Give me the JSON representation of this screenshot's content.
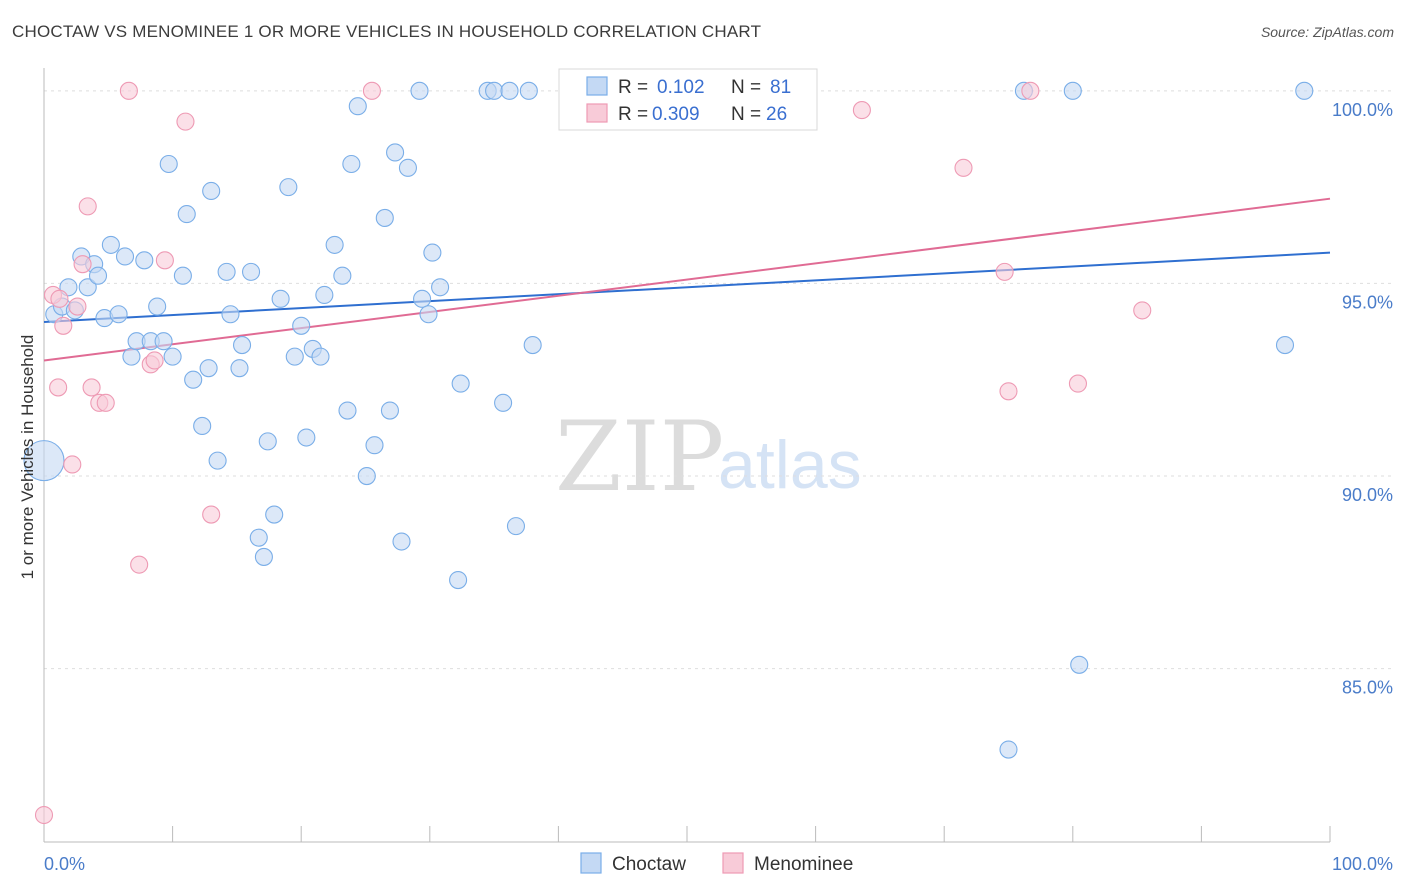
{
  "title": "CHOCTAW VS MENOMINEE 1 OR MORE VEHICLES IN HOUSEHOLD CORRELATION CHART",
  "source": "Source: ZipAtlas.com",
  "watermark": {
    "zip": "ZIP",
    "atlas": "atlas"
  },
  "legend": {
    "rows": [
      {
        "r_label": "R =",
        "r_value": "0.102",
        "n_label": "N =",
        "n_value": "81"
      },
      {
        "r_label": "R =",
        "r_value": "0.309",
        "n_label": "N =",
        "n_value": "26"
      }
    ]
  },
  "chart_data": {
    "type": "scatter",
    "title": "CHOCTAW VS MENOMINEE 1 OR MORE VEHICLES IN HOUSEHOLD CORRELATION CHART",
    "xlabel": "",
    "ylabel": "1 or more Vehicles in Household",
    "xlim": [
      0,
      100
    ],
    "ylim": [
      80.5,
      100.8
    ],
    "x_tick_labels": [
      "0.0%",
      "100.0%"
    ],
    "y_ticks": [
      85,
      90,
      95,
      100
    ],
    "y_tick_labels": [
      "85.0%",
      "90.0%",
      "95.0%",
      "100.0%"
    ],
    "grid": "horizontal dashed",
    "legend_position": "bottom-center",
    "series": [
      {
        "name": "Choctaw",
        "color": "#7aaee8",
        "fill": "#c4d9f4",
        "trend": {
          "x": [
            0,
            100
          ],
          "y": [
            94.0,
            95.8
          ]
        },
        "points": [
          {
            "x": 0.0,
            "y": 90.4,
            "big": true
          },
          {
            "x": 0.8,
            "y": 94.2
          },
          {
            "x": 1.4,
            "y": 94.4
          },
          {
            "x": 1.9,
            "y": 94.9
          },
          {
            "x": 2.4,
            "y": 94.3
          },
          {
            "x": 2.9,
            "y": 95.7
          },
          {
            "x": 3.4,
            "y": 94.9
          },
          {
            "x": 3.9,
            "y": 95.5
          },
          {
            "x": 4.2,
            "y": 95.2
          },
          {
            "x": 4.7,
            "y": 94.1
          },
          {
            "x": 5.2,
            "y": 96.0
          },
          {
            "x": 5.8,
            "y": 94.2
          },
          {
            "x": 6.3,
            "y": 95.7
          },
          {
            "x": 6.8,
            "y": 93.1
          },
          {
            "x": 7.2,
            "y": 93.5
          },
          {
            "x": 7.8,
            "y": 95.6
          },
          {
            "x": 8.3,
            "y": 93.5
          },
          {
            "x": 8.8,
            "y": 94.4
          },
          {
            "x": 9.3,
            "y": 93.5
          },
          {
            "x": 9.7,
            "y": 98.1
          },
          {
            "x": 10.0,
            "y": 93.1
          },
          {
            "x": 10.8,
            "y": 95.2
          },
          {
            "x": 11.1,
            "y": 96.8
          },
          {
            "x": 11.6,
            "y": 92.5
          },
          {
            "x": 12.3,
            "y": 91.3
          },
          {
            "x": 12.8,
            "y": 92.8
          },
          {
            "x": 13.0,
            "y": 97.4
          },
          {
            "x": 13.5,
            "y": 90.4
          },
          {
            "x": 14.2,
            "y": 95.3
          },
          {
            "x": 14.5,
            "y": 94.2
          },
          {
            "x": 15.2,
            "y": 92.8
          },
          {
            "x": 15.4,
            "y": 93.4
          },
          {
            "x": 16.1,
            "y": 95.3
          },
          {
            "x": 16.7,
            "y": 88.4
          },
          {
            "x": 17.1,
            "y": 87.9
          },
          {
            "x": 17.4,
            "y": 90.9
          },
          {
            "x": 17.9,
            "y": 89.0
          },
          {
            "x": 18.4,
            "y": 94.6
          },
          {
            "x": 19.0,
            "y": 97.5
          },
          {
            "x": 19.5,
            "y": 93.1
          },
          {
            "x": 20.0,
            "y": 93.9
          },
          {
            "x": 20.4,
            "y": 91.0
          },
          {
            "x": 20.9,
            "y": 93.3
          },
          {
            "x": 21.5,
            "y": 93.1
          },
          {
            "x": 21.8,
            "y": 94.7
          },
          {
            "x": 22.6,
            "y": 96.0
          },
          {
            "x": 23.2,
            "y": 95.2
          },
          {
            "x": 23.6,
            "y": 91.7
          },
          {
            "x": 23.9,
            "y": 98.1
          },
          {
            "x": 24.4,
            "y": 99.6
          },
          {
            "x": 25.1,
            "y": 90.0
          },
          {
            "x": 25.7,
            "y": 90.8
          },
          {
            "x": 26.5,
            "y": 96.7
          },
          {
            "x": 26.9,
            "y": 91.7
          },
          {
            "x": 27.3,
            "y": 98.4
          },
          {
            "x": 27.8,
            "y": 88.3
          },
          {
            "x": 28.3,
            "y": 98.0
          },
          {
            "x": 29.2,
            "y": 100.0
          },
          {
            "x": 29.4,
            "y": 94.6
          },
          {
            "x": 29.9,
            "y": 94.2
          },
          {
            "x": 30.2,
            "y": 95.8
          },
          {
            "x": 30.8,
            "y": 94.9
          },
          {
            "x": 32.2,
            "y": 87.3
          },
          {
            "x": 32.4,
            "y": 92.4
          },
          {
            "x": 34.5,
            "y": 100.0
          },
          {
            "x": 35.0,
            "y": 100.0
          },
          {
            "x": 35.7,
            "y": 91.9
          },
          {
            "x": 36.2,
            "y": 100.0
          },
          {
            "x": 36.7,
            "y": 88.7
          },
          {
            "x": 37.7,
            "y": 100.0
          },
          {
            "x": 38.0,
            "y": 93.4
          },
          {
            "x": 44.8,
            "y": 100.0
          },
          {
            "x": 46.3,
            "y": 100.0
          },
          {
            "x": 75.0,
            "y": 82.9
          },
          {
            "x": 76.2,
            "y": 100.0
          },
          {
            "x": 80.0,
            "y": 100.0
          },
          {
            "x": 80.5,
            "y": 85.1
          },
          {
            "x": 96.5,
            "y": 93.4
          },
          {
            "x": 98.0,
            "y": 100.0
          }
        ]
      },
      {
        "name": "Menominee",
        "color": "#ee9ab4",
        "fill": "#f8cbd8",
        "trend": {
          "x": [
            0,
            100
          ],
          "y": [
            93.0,
            97.2
          ]
        },
        "points": [
          {
            "x": 0.0,
            "y": 81.2
          },
          {
            "x": 0.7,
            "y": 94.7
          },
          {
            "x": 1.2,
            "y": 94.6
          },
          {
            "x": 1.5,
            "y": 93.9
          },
          {
            "x": 1.1,
            "y": 92.3
          },
          {
            "x": 2.2,
            "y": 90.3
          },
          {
            "x": 2.6,
            "y": 94.4
          },
          {
            "x": 3.0,
            "y": 95.5
          },
          {
            "x": 3.4,
            "y": 97.0
          },
          {
            "x": 3.7,
            "y": 92.3
          },
          {
            "x": 4.3,
            "y": 91.9
          },
          {
            "x": 4.8,
            "y": 91.9
          },
          {
            "x": 6.6,
            "y": 100.0
          },
          {
            "x": 7.4,
            "y": 87.7
          },
          {
            "x": 8.3,
            "y": 92.9
          },
          {
            "x": 8.6,
            "y": 93.0
          },
          {
            "x": 9.4,
            "y": 95.6
          },
          {
            "x": 11.0,
            "y": 99.2
          },
          {
            "x": 13.0,
            "y": 89.0
          },
          {
            "x": 25.5,
            "y": 100.0
          },
          {
            "x": 63.6,
            "y": 99.5
          },
          {
            "x": 71.5,
            "y": 98.0
          },
          {
            "x": 74.7,
            "y": 95.3
          },
          {
            "x": 75.0,
            "y": 92.2
          },
          {
            "x": 76.7,
            "y": 100.0
          },
          {
            "x": 80.4,
            "y": 92.4
          },
          {
            "x": 85.4,
            "y": 94.3
          }
        ]
      }
    ]
  }
}
